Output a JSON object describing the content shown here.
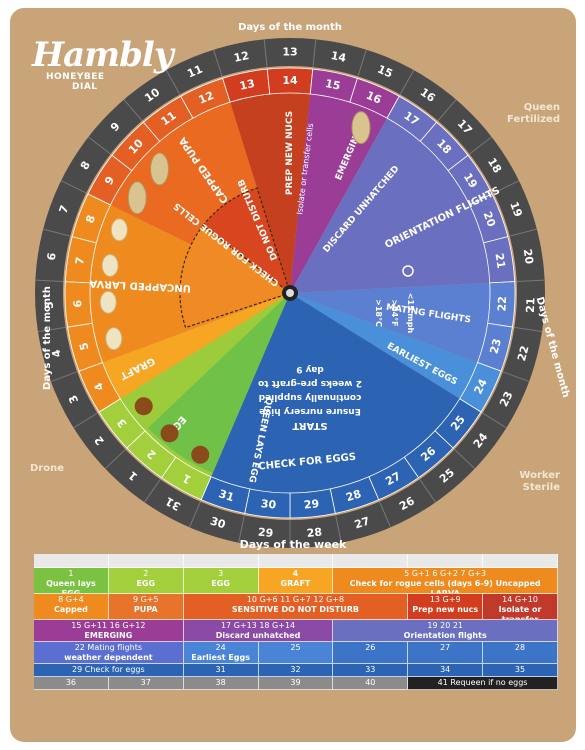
{
  "brand": {
    "name": "Hambly",
    "subtitle_line1": "HONEYBEE",
    "subtitle_line2": "DIAL",
    "registered": "®"
  },
  "ring_labels": {
    "top": "Days of the month",
    "left": "Days of the month",
    "right": "Days of the month"
  },
  "corners": {
    "queen": "Queen\nFertilized",
    "drone": "Drone",
    "worker": "Worker\nSterile"
  },
  "inner_ring_days": [
    "1",
    "2",
    "3",
    "4",
    "5",
    "6",
    "7",
    "8",
    "9",
    "10",
    "11",
    "12",
    "13",
    "14",
    "15",
    "16",
    "17",
    "18",
    "19",
    "20",
    "21",
    "22",
    "23",
    "24",
    "25",
    "26",
    "27",
    "28",
    "29",
    "30",
    "31"
  ],
  "outer_ring_days": [
    "31",
    "1",
    "2",
    "3",
    "4",
    "5",
    "6",
    "7",
    "8",
    "9",
    "10",
    "11",
    "12",
    "13",
    "14",
    "15",
    "16",
    "17",
    "18",
    "19",
    "20",
    "21",
    "22",
    "23",
    "24",
    "25",
    "26",
    "27",
    "28",
    "29",
    "30"
  ],
  "sectors": [
    {
      "key": "egg",
      "label": "EGG",
      "color": "#9ccb3b"
    },
    {
      "key": "larva",
      "label": "UNCAPPED LARVA",
      "color": "#ef8a1f"
    },
    {
      "key": "pupa",
      "label": "CAPPED PUPA",
      "color": "#ea6a21"
    },
    {
      "key": "nucs",
      "label": "PREP NEW NUCS",
      "sublabel": "Isolate or transfer cells",
      "color": "#c5401f"
    },
    {
      "key": "emerging",
      "label": "EMERGING",
      "color": "#9b3d96"
    },
    {
      "key": "orientation",
      "label": "ORIENTATION FLIGHTS",
      "color": "#6b6fc0"
    },
    {
      "key": "mating",
      "label": "MATING FLIGHTS",
      "color": "#5b7fd1"
    },
    {
      "key": "earliest",
      "label": "EARLIEST EGGS",
      "color": "#4a8fd9"
    },
    {
      "key": "check",
      "label": "CHECK FOR EGGS",
      "color": "#2c63b3"
    },
    {
      "key": "queen",
      "label": "QUEEN LAYS EGG",
      "color": "#6cc04a"
    },
    {
      "key": "graft",
      "label": "GRAFT",
      "color": "#f6a623"
    }
  ],
  "inner_labels": {
    "do_not_disturb": "DO NOT DISTURB",
    "check_rogue": "CHECK FOR ROGUE CELLS",
    "discard": "DISCARD UNHATCHED",
    "start": "START",
    "start_note1": "Ensure nursery hive",
    "start_note2": "continually supplied",
    "start_note3": "2 weeks pre-graft to",
    "start_note4": "day 9",
    "weather1": "<15 mph",
    "weather2": ">64°F",
    "weather3": ">18°C"
  },
  "week_title": "Days of the week",
  "rows": [
    [
      {
        "text": "1",
        "sub": "Queen lays EGG",
        "color": "#7cc242",
        "span": 1
      },
      {
        "text": "2",
        "sub": "EGG",
        "color": "#a3cf3d",
        "span": 1
      },
      {
        "text": "3",
        "sub": "EGG",
        "color": "#a3cf3d",
        "span": 1
      },
      {
        "text": "4",
        "sub": "GRAFT",
        "color": "#f6a623",
        "span": 1,
        "bold": true
      },
      {
        "text": "5 G+1      6 G+2      7 G+3",
        "sub": "Check for rogue cells (days 6-9)  Uncapped LARVA",
        "color": "#ef8a1f",
        "span": 3
      }
    ],
    [
      {
        "text": "8 G+4",
        "sub": "Capped",
        "color": "#ef8a1f",
        "span": 1
      },
      {
        "text": "9 G+5",
        "sub": "PUPA",
        "color": "#e8732a",
        "span": 1
      },
      {
        "text": "10 G+6     11 G+7     12 G+8",
        "sub": "SENSITIVE  DO NOT DISTURB",
        "color": "#e45f24",
        "span": 3
      },
      {
        "text": "13 G+9",
        "sub": "Prep new nucs",
        "color": "#d23d1f",
        "span": 1
      },
      {
        "text": "14 G+10",
        "sub": "Isolate or transfer",
        "color": "#c0392b",
        "span": 1
      }
    ],
    [
      {
        "text": "15 G+11     16 G+12",
        "sub": "EMERGING",
        "color": "#9b3d96",
        "span": 2
      },
      {
        "text": "17 G+13     18 G+14",
        "sub": "Discard unhatched",
        "color": "#8a4aa6",
        "span": 2
      },
      {
        "text": "19          20          21",
        "sub": "Orientation  flights",
        "color": "#6b6fc0",
        "span": 3
      }
    ],
    [
      {
        "text": "22 Mating flights",
        "sub": "weather dependent",
        "color": "#5b6fd0",
        "span": 2
      },
      {
        "text": "24",
        "sub": "Earliest Eggs",
        "color": "#4a84d6",
        "span": 1
      },
      {
        "text": "25",
        "sub": "",
        "color": "#4a84d6",
        "span": 1
      },
      {
        "text": "26",
        "sub": "",
        "color": "#3c74c8",
        "span": 1
      },
      {
        "text": "27",
        "sub": "",
        "color": "#3c74c8",
        "span": 1
      },
      {
        "text": "28",
        "sub": "",
        "color": "#3c74c8",
        "span": 1
      }
    ],
    [
      {
        "text": "29 Check for eggs",
        "sub": "",
        "color": "#2c63b3",
        "span": 2
      },
      {
        "text": "31",
        "sub": "",
        "color": "#2c63b3",
        "span": 1
      },
      {
        "text": "32",
        "sub": "",
        "color": "#2c63b3",
        "span": 1
      },
      {
        "text": "33",
        "sub": "",
        "color": "#2c63b3",
        "span": 1
      },
      {
        "text": "34",
        "sub": "",
        "color": "#2c63b3",
        "span": 1
      },
      {
        "text": "35",
        "sub": "",
        "color": "#2c63b3",
        "span": 1
      }
    ],
    [
      {
        "text": "36",
        "sub": "",
        "color": "#8b8b8b",
        "span": 1
      },
      {
        "text": "37",
        "sub": "",
        "color": "#8b8b8b",
        "span": 1
      },
      {
        "text": "38",
        "sub": "",
        "color": "#8b8b8b",
        "span": 1
      },
      {
        "text": "39",
        "sub": "",
        "color": "#8b8b8b",
        "span": 1
      },
      {
        "text": "40",
        "sub": "",
        "color": "#8b8b8b",
        "span": 1
      },
      {
        "text": "41 Requeen if no eggs",
        "sub": "",
        "color": "#222222",
        "span": 2
      }
    ]
  ]
}
